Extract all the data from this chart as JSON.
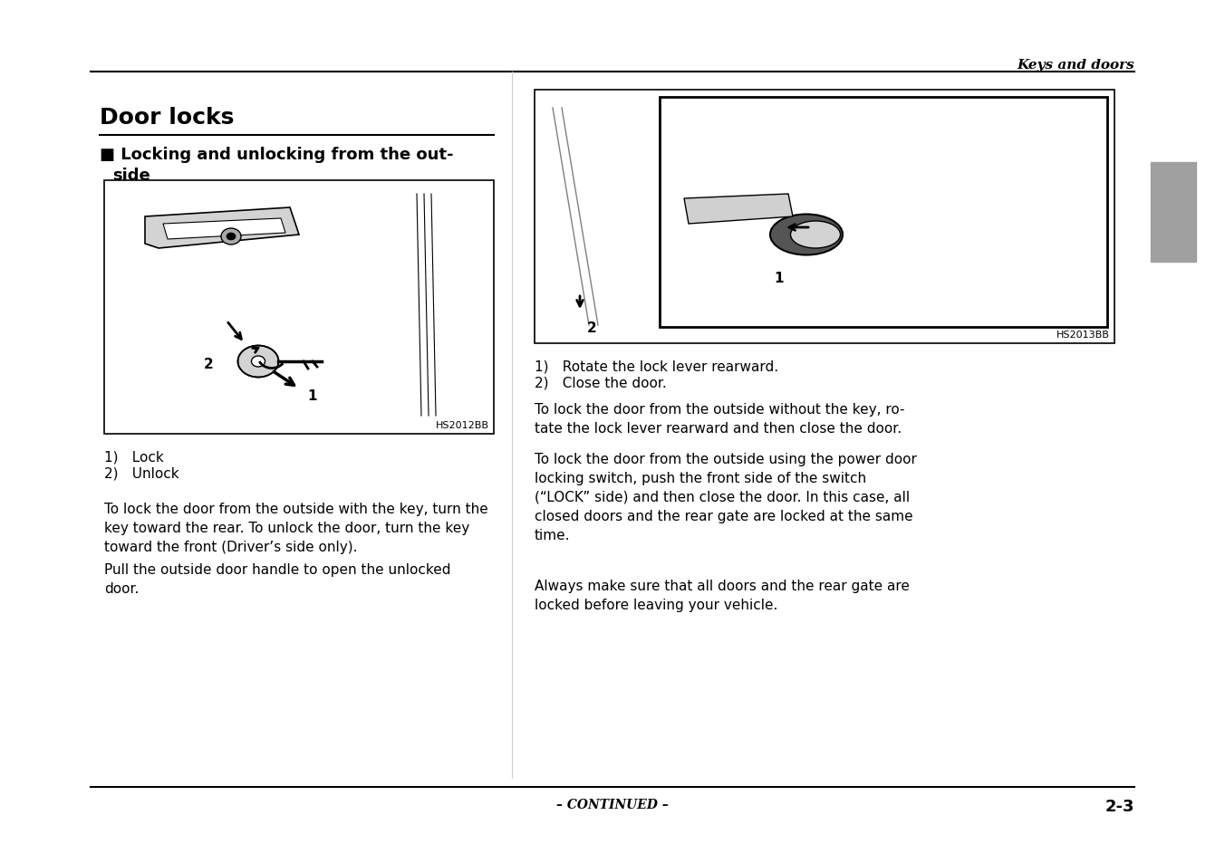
{
  "page_title_italic": "Keys and doors",
  "section_title": "Door locks",
  "subsection_title": "■ Locking and unlocking from the out-\n    side",
  "left_image_label": "HS2012BB",
  "right_image_label": "HS2013BB",
  "left_caption_1": "1) Lock",
  "left_caption_2": "2) Unlock",
  "right_caption_1": "1) Rotate the lock lever rearward.",
  "right_caption_2": "2) Close the door.",
  "para1": "To lock the door from the outside with the key, turn the\nkey toward the rear. To unlock the door, turn the key\ntoward the front (Driver’s side only).",
  "para2": "Pull the outside door handle to open the unlocked\ndoor.",
  "para3": "To lock the door from the outside without the key, ro-\ntate the lock lever rearward and then close the door.",
  "para4": "To lock the door from the outside using the power door\nlocking switch, push the front side of the switch\n(“LOCK” side) and then close the door. In this case, all\nclosed doors and the rear gate are locked at the same\ntime.",
  "para5": "Always make sure that all doors and the rear gate are\nlocked before leaving your vehicle.",
  "footer_continued": "– CONTINUED –",
  "page_number": "2-3",
  "bg_color": "#ffffff",
  "text_color": "#000000",
  "line_color": "#000000",
  "tab_color": "#a0a0a0"
}
